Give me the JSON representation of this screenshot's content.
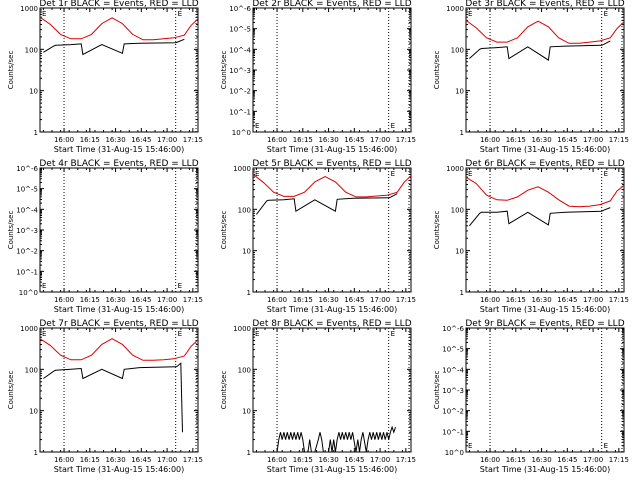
{
  "figure": {
    "xaxis_title": "Start Time (31-Aug-15 15:46:00)",
    "ylabel": "Counts/sec",
    "time_ticks": [
      "16:00",
      "16:15",
      "16:30",
      "16:45",
      "17:00",
      "17:15"
    ],
    "e_marker": "E"
  },
  "chart_data": [
    {
      "type": "line",
      "title": "Det 1r BLACK = Events, RED = LLD",
      "y_scale": "log",
      "ylim": [
        1,
        1000
      ],
      "ytick_labels": [
        "1",
        "10",
        "100",
        "1000"
      ],
      "xlim_min": [
        0,
        92
      ],
      "vlines_min": [
        14,
        79
      ],
      "series": [
        {
          "name": "Events",
          "color": "#000000",
          "x": [
            2,
            8,
            9,
            18,
            24,
            25,
            36,
            48,
            49,
            58,
            79,
            80,
            84
          ],
          "y": [
            85,
            120,
            125,
            130,
            135,
            75,
            130,
            80,
            135,
            140,
            145,
            150,
            175
          ]
        },
        {
          "name": "LLD",
          "color": "#dd0000",
          "x": [
            0,
            6,
            12,
            18,
            24,
            30,
            36,
            42,
            48,
            54,
            60,
            66,
            72,
            78,
            84,
            88,
            92
          ],
          "y": [
            600,
            400,
            230,
            180,
            180,
            230,
            420,
            580,
            420,
            230,
            170,
            170,
            180,
            190,
            220,
            380,
            550
          ]
        }
      ]
    },
    {
      "type": "line",
      "title": "Det 2r BLACK = Events, RED = LLD",
      "y_scale": "log",
      "ylim": [
        1,
        1000000
      ],
      "ytick_labels": [
        "10^0",
        "10^-1",
        "10^-2",
        "10^-3",
        "10^-4",
        "10^-5",
        "10^-6"
      ],
      "xlim_min": [
        0,
        92
      ],
      "vlines_min": [
        14,
        79
      ],
      "series": []
    },
    {
      "type": "line",
      "title": "Det 3r BLACK = Events, RED = LLD",
      "y_scale": "log",
      "ylim": [
        1,
        1000
      ],
      "ytick_labels": [
        "1",
        "10",
        "100",
        "1000"
      ],
      "xlim_min": [
        0,
        92
      ],
      "vlines_min": [
        14,
        79
      ],
      "series": [
        {
          "name": "Events",
          "color": "#000000",
          "x": [
            2,
            8,
            9,
            18,
            24,
            25,
            36,
            48,
            49,
            58,
            79,
            80,
            84
          ],
          "y": [
            60,
            100,
            105,
            110,
            115,
            60,
            115,
            55,
            115,
            120,
            125,
            130,
            160
          ]
        },
        {
          "name": "LLD",
          "color": "#dd0000",
          "x": [
            0,
            6,
            12,
            18,
            24,
            30,
            36,
            42,
            48,
            54,
            60,
            66,
            72,
            78,
            84,
            88,
            92
          ],
          "y": [
            500,
            330,
            190,
            150,
            150,
            190,
            350,
            480,
            350,
            190,
            140,
            140,
            150,
            160,
            190,
            320,
            460
          ]
        }
      ]
    },
    {
      "type": "line",
      "title": "Det 4r BLACK = Events, RED = LLD",
      "y_scale": "log",
      "ylim": [
        1,
        1000000
      ],
      "ytick_labels": [
        "10^0",
        "10^-1",
        "10^-2",
        "10^-3",
        "10^-4",
        "10^-5",
        "10^-6"
      ],
      "xlim_min": [
        0,
        92
      ],
      "vlines_min": [
        14,
        79
      ],
      "series": []
    },
    {
      "type": "line",
      "title": "Det 5r BLACK = Events, RED = LLD",
      "y_scale": "log",
      "ylim": [
        1,
        1000
      ],
      "ytick_labels": [
        "1",
        "10",
        "100",
        "1000"
      ],
      "xlim_min": [
        0,
        92
      ],
      "vlines_min": [
        14,
        79
      ],
      "series": [
        {
          "name": "Events",
          "color": "#000000",
          "x": [
            2,
            8,
            9,
            18,
            24,
            25,
            36,
            48,
            49,
            58,
            79,
            80,
            84
          ],
          "y": [
            75,
            160,
            165,
            170,
            180,
            90,
            170,
            90,
            175,
            185,
            190,
            195,
            240
          ]
        },
        {
          "name": "LLD",
          "color": "#dd0000",
          "x": [
            0,
            6,
            12,
            18,
            24,
            30,
            36,
            42,
            48,
            54,
            60,
            66,
            72,
            78,
            84,
            88,
            92
          ],
          "y": [
            700,
            450,
            260,
            205,
            205,
            260,
            460,
            620,
            460,
            260,
            200,
            200,
            210,
            220,
            260,
            450,
            650
          ]
        }
      ]
    },
    {
      "type": "line",
      "title": "Det 6r BLACK = Events, RED = LLD",
      "y_scale": "log",
      "ylim": [
        1,
        1000
      ],
      "ytick_labels": [
        "1",
        "10",
        "100",
        "1000"
      ],
      "xlim_min": [
        0,
        92
      ],
      "vlines_min": [
        14,
        79
      ],
      "series": [
        {
          "name": "Events",
          "color": "#000000",
          "x": [
            2,
            8,
            9,
            18,
            24,
            25,
            36,
            48,
            49,
            58,
            79,
            80,
            84
          ],
          "y": [
            40,
            80,
            85,
            85,
            90,
            45,
            85,
            42,
            80,
            85,
            90,
            95,
            110
          ]
        },
        {
          "name": "LLD",
          "color": "#dd0000",
          "x": [
            0,
            6,
            12,
            18,
            24,
            30,
            36,
            42,
            48,
            54,
            60,
            66,
            72,
            78,
            84,
            88,
            92
          ],
          "y": [
            600,
            420,
            220,
            170,
            165,
            200,
            290,
            350,
            260,
            170,
            120,
            115,
            120,
            130,
            160,
            280,
            380
          ]
        }
      ]
    },
    {
      "type": "line",
      "title": "Det 7r BLACK = Events, RED = LLD",
      "y_scale": "log",
      "ylim": [
        1,
        1000
      ],
      "ytick_labels": [
        "1",
        "10",
        "100",
        "1000"
      ],
      "xlim_min": [
        0,
        92
      ],
      "vlines_min": [
        14,
        79
      ],
      "series": [
        {
          "name": "Events",
          "color": "#000000",
          "x": [
            2,
            8,
            9,
            18,
            24,
            25,
            36,
            48,
            49,
            58,
            79,
            80,
            82,
            83
          ],
          "y": [
            60,
            90,
            95,
            100,
            105,
            60,
            100,
            60,
            100,
            110,
            115,
            120,
            140,
            3
          ]
        },
        {
          "name": "LLD",
          "color": "#dd0000",
          "x": [
            0,
            6,
            12,
            18,
            24,
            30,
            36,
            42,
            48,
            54,
            60,
            66,
            72,
            78,
            84,
            88,
            92
          ],
          "y": [
            550,
            380,
            220,
            170,
            170,
            220,
            400,
            550,
            400,
            220,
            165,
            165,
            170,
            180,
            210,
            360,
            520
          ]
        }
      ]
    },
    {
      "type": "line",
      "title": "Det 8r BLACK = Events, RED = LLD",
      "y_scale": "log",
      "ylim": [
        1,
        1000
      ],
      "ytick_labels": [
        "1",
        "10",
        "100",
        "1000"
      ],
      "xlim_min": [
        0,
        92
      ],
      "vlines_min": [
        14,
        79
      ],
      "series": [
        {
          "name": "Events",
          "color": "#000000",
          "x": [
            14,
            15,
            16,
            17,
            18,
            19,
            20,
            21,
            22,
            23,
            24,
            25,
            26,
            27,
            28,
            29,
            30,
            32,
            33,
            34,
            36,
            38,
            39,
            40,
            41,
            44,
            45,
            46,
            47,
            48,
            49,
            50,
            51,
            52,
            53,
            54,
            55,
            56,
            57,
            58,
            60,
            61,
            62,
            63,
            64,
            66,
            67,
            68,
            69,
            70,
            71,
            72,
            73,
            74,
            75,
            76,
            77,
            78,
            79,
            80,
            81,
            82,
            83
          ],
          "y": [
            1,
            2,
            3,
            2,
            3,
            2,
            3,
            2,
            3,
            2,
            3,
            2,
            3,
            2,
            3,
            2,
            1,
            1,
            2,
            1,
            1,
            2,
            3,
            2,
            1,
            1,
            2,
            1,
            2,
            1,
            2,
            3,
            2,
            3,
            2,
            3,
            2,
            3,
            2,
            3,
            1,
            2,
            1,
            2,
            3,
            1,
            2,
            3,
            2,
            3,
            2,
            3,
            2,
            3,
            2,
            3,
            2,
            3,
            2,
            3,
            4,
            3,
            4
          ]
        }
      ]
    },
    {
      "type": "line",
      "title": "Det 9r BLACK = Events, RED = LLD",
      "y_scale": "log",
      "ylim": [
        1,
        1000000
      ],
      "ytick_labels": [
        "10^0",
        "10^-1",
        "10^-2",
        "10^-3",
        "10^-4",
        "10^-5",
        "10^-6"
      ],
      "xlim_min": [
        0,
        92
      ],
      "vlines_min": [
        14,
        79
      ],
      "series": []
    }
  ]
}
